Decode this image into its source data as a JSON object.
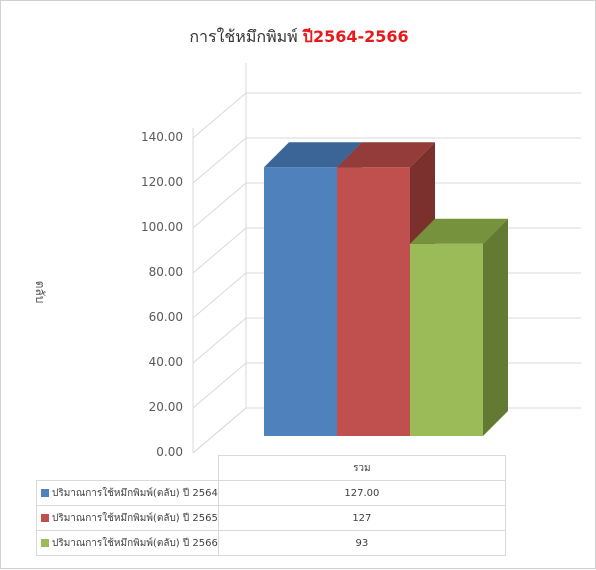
{
  "chart_data": {
    "type": "bar",
    "title_prefix": "การใช้หมึกพิมพ์ ",
    "title_highlight": "ปี2564-2566",
    "ylabel": "ตลับ",
    "categories": [
      "รวม"
    ],
    "ylim": [
      0,
      140
    ],
    "y_ticks": [
      "0.00",
      "20.00",
      "40.00",
      "60.00",
      "80.00",
      "100.00",
      "120.00",
      "140.00"
    ],
    "grid": true,
    "series": [
      {
        "name": "ปริมาณการใช้หมึกพิมพ์(ตลับ) ปี 2564",
        "values": [
          127
        ],
        "display": "127.00",
        "color": "#4f81bd",
        "top_color": "#3a6596",
        "side_color": "#2f5380"
      },
      {
        "name": "ปริมาณการใช้หมึกพิมพ์(ตลับ) ปี 2565",
        "values": [
          127
        ],
        "display": "127",
        "color": "#c0504d",
        "top_color": "#933c3a",
        "side_color": "#7b302e"
      },
      {
        "name": "ปริมาณการใช้หมึกพิมพ์(ตลับ) ปี 2566",
        "values": [
          93
        ],
        "display": "93",
        "color": "#9bbb59",
        "top_color": "#76923c",
        "side_color": "#627a32"
      }
    ]
  }
}
